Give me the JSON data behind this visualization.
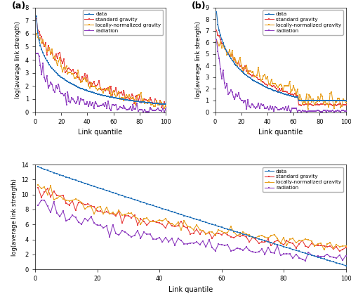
{
  "colors": {
    "data": "#2070B8",
    "standard_gravity": "#E84040",
    "locally_normalized_gravity": "#E8A020",
    "radiation": "#9040C0"
  },
  "legend_labels": [
    "data",
    "standard gravity",
    "locally-normalized gravity",
    "radiation"
  ],
  "xlabel": "Link quantile",
  "ylabel": "log(average link strength)",
  "panels": {
    "a": {
      "ylim": [
        0,
        8
      ],
      "yticks": [
        0,
        1,
        2,
        3,
        4,
        5,
        6,
        7,
        8
      ],
      "xlim": [
        0,
        100
      ],
      "xticks": [
        0,
        20,
        40,
        60,
        80,
        100
      ]
    },
    "b": {
      "ylim": [
        0,
        9
      ],
      "yticks": [
        0,
        1,
        2,
        3,
        4,
        5,
        6,
        7,
        8,
        9
      ],
      "xlim": [
        0,
        100
      ],
      "xticks": [
        0,
        20,
        40,
        60,
        80,
        100
      ]
    },
    "c": {
      "ylim": [
        0,
        14
      ],
      "yticks": [
        0,
        2,
        4,
        6,
        8,
        10,
        12,
        14
      ],
      "xlim": [
        0,
        100
      ],
      "xticks": [
        0,
        20,
        40,
        60,
        80,
        100
      ]
    }
  }
}
